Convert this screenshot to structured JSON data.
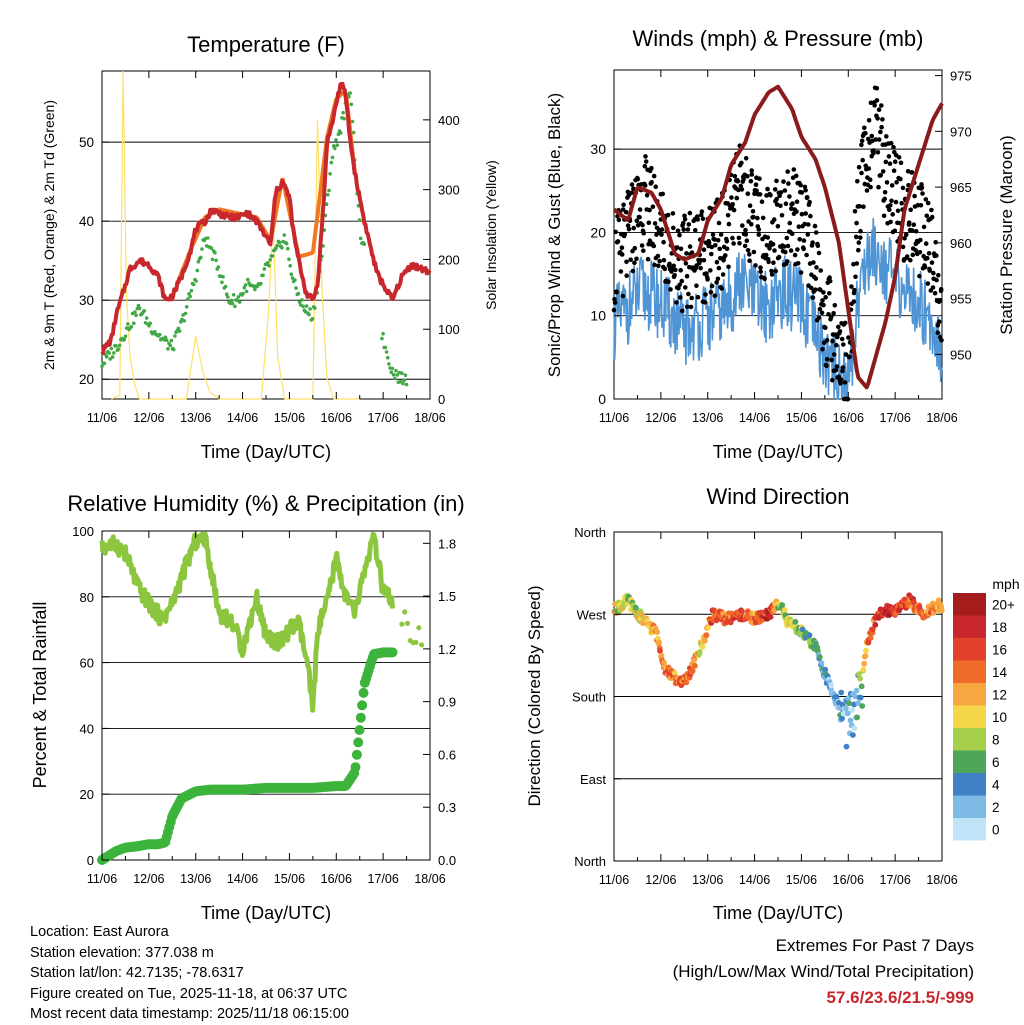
{
  "chart_data": [
    {
      "type": "line",
      "title": "Temperature (F)",
      "xlabel": "Time (Day/UTC)",
      "ylabel": "2m & 9m T (Red, Orange) & 2m Td (Green)",
      "ylabel_right": "Solar Insolation (Yellow)",
      "x_ticks": [
        "11/06",
        "12/06",
        "13/06",
        "14/06",
        "15/06",
        "16/06",
        "17/06",
        "18/06"
      ],
      "ylim": [
        17.5,
        59
      ],
      "y_ticks": [
        20,
        30,
        40,
        50
      ],
      "ylim_right": [
        0,
        470
      ],
      "y_ticks_right": [
        0,
        100,
        200,
        300,
        400
      ],
      "series": [
        {
          "name": "2m T",
          "color": "#c8282d",
          "x": [
            0,
            0.2,
            0.3,
            0.5,
            0.6,
            0.8,
            1.0,
            1.2,
            1.35,
            1.5,
            1.7,
            1.9,
            2.0,
            2.2,
            2.35,
            2.5,
            2.7,
            2.9,
            3.1,
            3.3,
            3.5,
            3.6,
            3.7,
            3.85,
            4.0,
            4.1,
            4.2,
            4.35,
            4.5,
            4.6,
            4.75,
            4.8,
            4.9,
            5.0,
            5.1,
            5.2,
            5.3,
            5.4,
            5.5,
            5.6,
            5.7,
            5.8,
            5.9,
            6.0,
            6.2,
            6.4,
            6.6,
            6.8,
            7.0
          ],
          "values": [
            23.5,
            25,
            28,
            32,
            34,
            35,
            34.5,
            33,
            30,
            30.5,
            33,
            36.5,
            39,
            40,
            41.5,
            41,
            40.5,
            40.5,
            41,
            40,
            38,
            37,
            43.5,
            45,
            43,
            38,
            35,
            31,
            30,
            32,
            44,
            50,
            52,
            55,
            57.5,
            56,
            50,
            46,
            43,
            40,
            37.5,
            35,
            33,
            32,
            30,
            33,
            34.5,
            34,
            33.5
          ]
        },
        {
          "name": "9m T",
          "color": "#f07820",
          "x": [
            1.6,
            1.9,
            2.2,
            2.5,
            2.9,
            3.3,
            3.6,
            3.85,
            4.2,
            4.5,
            4.8,
            5.0,
            5.2,
            5.4
          ],
          "values": [
            32,
            36.5,
            40.5,
            41.5,
            41,
            40.5,
            37.5,
            45.5,
            35.5,
            36,
            50.5,
            55.5,
            56.5,
            46
          ]
        },
        {
          "name": "2m Td",
          "color": "#41a846",
          "x": [
            0,
            0.3,
            0.5,
            0.8,
            1.0,
            1.3,
            1.5,
            1.7,
            2.0,
            2.2,
            2.5,
            2.7,
            2.9,
            3.1,
            3.3,
            3.5,
            3.7,
            3.9,
            4.1,
            4.3,
            4.5,
            4.7,
            4.9,
            5.1,
            5.3,
            5.5,
            6.0,
            6.2,
            6.4
          ],
          "values": [
            22,
            24,
            26,
            29,
            27,
            25,
            24,
            27,
            33,
            38,
            34,
            30,
            30,
            32,
            31,
            34,
            36,
            38,
            32,
            29,
            28,
            36,
            48,
            52,
            57,
            39,
            25,
            21,
            20
          ]
        },
        {
          "name": "Solar Insolation",
          "color": "#ffe066",
          "axis": "right",
          "x": [
            0.2,
            0.38,
            0.45,
            0.52,
            0.6,
            0.7,
            0.8,
            1.0,
            1.8,
            2.0,
            2.15,
            2.3,
            2.5,
            3.4,
            3.55,
            3.65,
            3.75,
            3.9,
            4.5,
            4.6,
            4.7,
            4.8,
            4.95,
            5.5
          ],
          "values": [
            0,
            5,
            470,
            150,
            60,
            20,
            0,
            0,
            0,
            90,
            40,
            10,
            0,
            0,
            120,
            260,
            60,
            0,
            0,
            400,
            150,
            30,
            0,
            0
          ]
        }
      ]
    },
    {
      "type": "line",
      "title": "Winds (mph) & Pressure (mb)",
      "xlabel": "Time (Day/UTC)",
      "ylabel": "Sonic/Prop Wind & Gust (Blue, Black)",
      "ylabel_right": "Station Pressure (Maroon)",
      "x_ticks": [
        "11/06",
        "12/06",
        "13/06",
        "14/06",
        "15/06",
        "16/06",
        "17/06",
        "18/06"
      ],
      "ylim": [
        0,
        39.5
      ],
      "y_ticks": [
        0,
        10,
        20,
        30
      ],
      "ylim_right": [
        946,
        975.5
      ],
      "y_ticks_right": [
        950,
        955,
        960,
        965,
        970,
        975
      ],
      "series": [
        {
          "name": "Gust",
          "color": "#000000",
          "x": [
            0,
            0.3,
            0.6,
            0.9,
            1.2,
            1.5,
            1.8,
            2.1,
            2.4,
            2.7,
            3.0,
            3.3,
            3.6,
            3.9,
            4.2,
            4.5,
            4.8,
            5.0,
            5.2,
            5.4,
            5.6,
            5.8,
            6.0,
            6.2,
            6.4,
            6.6,
            6.8,
            7.0
          ],
          "values": [
            16,
            19,
            24,
            21,
            18,
            16,
            18,
            17,
            20,
            25,
            21,
            20,
            22,
            22,
            18,
            10,
            6,
            3,
            22,
            30,
            32,
            27,
            24,
            22,
            21,
            20,
            17,
            10
          ]
        },
        {
          "name": "Wind",
          "color": "#4f94d4",
          "x": [
            0,
            0.3,
            0.6,
            0.9,
            1.2,
            1.5,
            1.8,
            2.1,
            2.4,
            2.7,
            3.0,
            3.3,
            3.6,
            3.9,
            4.2,
            4.5,
            4.8,
            5.0,
            5.2,
            5.4,
            5.6,
            5.8,
            6.0,
            6.2,
            6.4,
            6.6,
            6.8,
            7.0
          ],
          "values": [
            9,
            11,
            13,
            12,
            10,
            8,
            9,
            10,
            11,
            14,
            12,
            11,
            13,
            12,
            9,
            5,
            3,
            1,
            12,
            17,
            18,
            16,
            14,
            13,
            12,
            11,
            9,
            6
          ]
        },
        {
          "name": "Station Pressure",
          "color": "#8b1a1a",
          "axis": "right",
          "x": [
            0,
            0.3,
            0.5,
            0.8,
            1.0,
            1.3,
            1.5,
            1.8,
            2.0,
            2.3,
            2.5,
            2.8,
            3.0,
            3.3,
            3.5,
            3.8,
            4.0,
            4.3,
            4.5,
            4.8,
            5.0,
            5.2,
            5.4,
            5.6,
            5.8,
            6.0,
            6.2,
            6.5,
            6.8,
            7.0
          ],
          "values": [
            963,
            962,
            965,
            964.5,
            963,
            959,
            958.5,
            959,
            962,
            964,
            967,
            969,
            971.5,
            973.5,
            974,
            972,
            969.5,
            967.5,
            965,
            960,
            954,
            948,
            947,
            950,
            953,
            957,
            963,
            967,
            971,
            972.5
          ]
        }
      ]
    },
    {
      "type": "line",
      "title": "Relative Humidity (%) & Precipitation (in)",
      "xlabel": "Time (Day/UTC)",
      "ylabel": "Percent & Total Rainfall",
      "x_ticks": [
        "11/06",
        "12/06",
        "13/06",
        "14/06",
        "15/06",
        "16/06",
        "17/06",
        "18/06"
      ],
      "ylim": [
        0,
        100
      ],
      "y_ticks": [
        0,
        20,
        40,
        60,
        80,
        100
      ],
      "ylim_right": [
        0,
        1.87
      ],
      "y_ticks_right": [
        "0.0",
        "0.3",
        "0.6",
        "0.9",
        "1.2",
        "1.5",
        "1.8"
      ],
      "series": [
        {
          "name": "Relative Humidity",
          "color": "#8cc63f",
          "x": [
            0,
            0.3,
            0.5,
            0.8,
            1.0,
            1.3,
            1.5,
            1.8,
            2.0,
            2.2,
            2.5,
            2.8,
            3.0,
            3.3,
            3.5,
            3.8,
            4.0,
            4.2,
            4.4,
            4.5,
            4.6,
            4.8,
            5.0,
            5.2,
            5.4,
            5.6,
            5.8,
            6.0,
            6.5,
            6.8
          ],
          "values": [
            95,
            96,
            93,
            82,
            78,
            73,
            78,
            90,
            97,
            98,
            75,
            72,
            64,
            80,
            68,
            66,
            70,
            72,
            58,
            45,
            70,
            78,
            92,
            80,
            75,
            88,
            98,
            82,
            72,
            66
          ]
        },
        {
          "name": "Total Precipitation",
          "color": "#3cb43c",
          "x": [
            0,
            0.3,
            0.5,
            0.8,
            1.0,
            1.2,
            1.35,
            1.5,
            1.7,
            2.0,
            2.3,
            2.5,
            3.0,
            3.5,
            4.0,
            4.5,
            5.0,
            5.2,
            5.4,
            5.6,
            5.8,
            6.0,
            6.2
          ],
          "values": [
            0,
            0.05,
            0.07,
            0.08,
            0.09,
            0.09,
            0.1,
            0.25,
            0.35,
            0.39,
            0.4,
            0.4,
            0.4,
            0.41,
            0.41,
            0.41,
            0.42,
            0.42,
            0.5,
            1.0,
            1.17,
            1.18,
            1.18
          ]
        }
      ]
    },
    {
      "type": "scatter",
      "title": "Wind Direction",
      "xlabel": "Time (Day/UTC)",
      "ylabel": "Direction (Colored By Speed)",
      "x_ticks": [
        "11/06",
        "12/06",
        "13/06",
        "14/06",
        "15/06",
        "16/06",
        "17/06",
        "18/06"
      ],
      "y_ticks": [
        "North",
        "West",
        "South",
        "East",
        "North"
      ],
      "ylim": [
        0,
        360
      ],
      "colorbar": {
        "title": "mph",
        "labels": [
          "20+",
          "18",
          "16",
          "14",
          "12",
          "10",
          "8",
          "6",
          "4",
          "2",
          "0"
        ],
        "colors": [
          "#a51c1c",
          "#c8282d",
          "#e2412b",
          "#f06a2a",
          "#f7a742",
          "#f5d64b",
          "#a6cf4a",
          "#4fa55a",
          "#3f80c6",
          "#7fb9e6",
          "#bfe3f7"
        ]
      },
      "series": [
        {
          "name": "Direction",
          "x": [
            0,
            0.3,
            0.6,
            0.9,
            1.1,
            1.3,
            1.5,
            1.7,
            1.9,
            2.1,
            2.4,
            2.7,
            3.0,
            3.3,
            3.55,
            3.7,
            3.9,
            4.1,
            4.3,
            4.5,
            4.7,
            4.9,
            5.0,
            5.1,
            5.2,
            5.3,
            5.4,
            5.6,
            5.8,
            6.0,
            6.3,
            6.6,
            6.9
          ],
          "values": [
            275,
            285,
            265,
            250,
            210,
            200,
            195,
            215,
            240,
            270,
            265,
            270,
            265,
            270,
            285,
            260,
            255,
            245,
            235,
            205,
            180,
            160,
            150,
            160,
            175,
            195,
            240,
            265,
            275,
            275,
            285,
            270,
            280
          ],
          "speeds": [
            10,
            8,
            9,
            12,
            14,
            13,
            15,
            14,
            10,
            16,
            14,
            17,
            13,
            18,
            7,
            10,
            8,
            6,
            5,
            4,
            3,
            2,
            3,
            2,
            4,
            8,
            12,
            16,
            18,
            17,
            15,
            14,
            12
          ]
        }
      ]
    }
  ],
  "info": {
    "location": "Location: East Aurora",
    "elevation": "Station elevation: 377.038 m",
    "latlon": "Station lat/lon: 42.7135; -78.6317",
    "created": "Figure created on Tue, 2025-11-18, at 06:37 UTC",
    "recent": "Most recent data timestamp: 2025/11/18 06:15:00"
  },
  "extremes": {
    "title": "Extremes For Past 7 Days",
    "subtitle": "(High/Low/Max Wind/Total Precipitation)",
    "values": "57.6/23.6/21.5/-999"
  }
}
